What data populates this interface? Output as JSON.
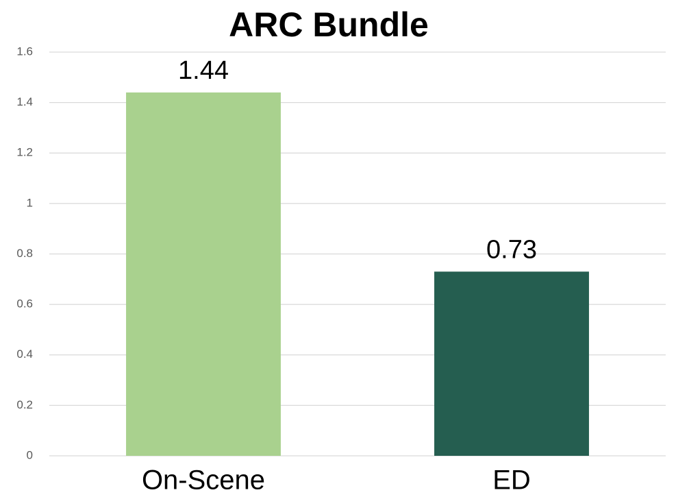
{
  "chart_data": {
    "type": "bar",
    "title": "ARC Bundle",
    "categories": [
      "On-Scene",
      "ED"
    ],
    "values": [
      1.44,
      0.73
    ],
    "colors": [
      "#a9d18e",
      "#255e50"
    ],
    "ylim": [
      0,
      1.6
    ],
    "yticks": [
      0,
      0.2,
      0.4,
      0.6,
      0.8,
      1,
      1.2,
      1.4,
      1.6
    ],
    "grid": true
  }
}
